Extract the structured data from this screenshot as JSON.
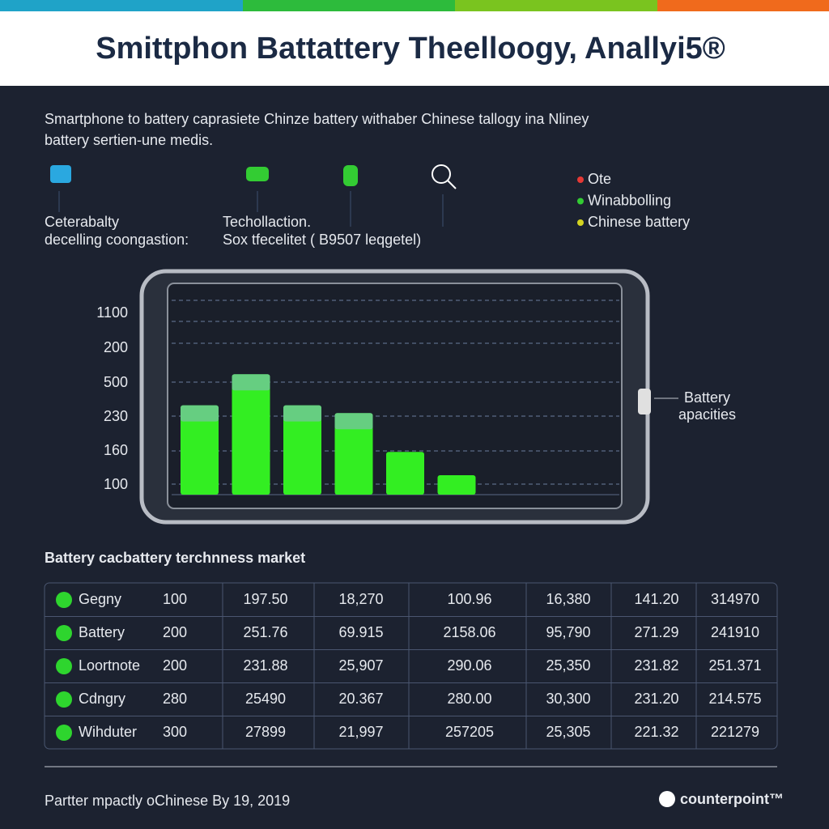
{
  "header": {
    "title": "Smittphon Battattery Theelloogy, Anallyi5®",
    "subtitle_lines": [
      "Smartphone to battery caprasiete Chinze battery withaber Chinese tallogy ina Nliney",
      "battery sertien-une medis."
    ]
  },
  "features": [
    {
      "lines": [
        "Ceterabalty",
        "decelling coongastion:"
      ]
    },
    {
      "lines": [
        "Techollaction.",
        "Sox tfecelitet ( B9507 leqgetel)"
      ]
    }
  ],
  "legend": [
    {
      "name": "Ote",
      "color": "#e53935"
    },
    {
      "name": "Winabbolling",
      "color": "#33cc33"
    },
    {
      "name": "Chinese battery",
      "color": "#d4d420"
    }
  ],
  "chart_data": {
    "type": "bar",
    "y_axis_labels": [
      "1100",
      "200",
      "500",
      "230",
      "160",
      "100"
    ],
    "values": [
      46,
      62,
      46,
      42,
      22,
      10
    ],
    "color": "#33ee22",
    "annotation": [
      "Battery",
      "apacities"
    ]
  },
  "table": {
    "title": "Battery cacbattery terchnness market",
    "rows": [
      [
        "Gegny",
        "100",
        "197.50",
        "18,270",
        "100.96",
        "16,380",
        "141.20",
        "314970"
      ],
      [
        "Battery",
        "200",
        "251.76",
        "69.915",
        "2158.06",
        "95,790",
        "271.29",
        "241910"
      ],
      [
        "Loortnote",
        "200",
        "231.88",
        "25,907",
        "290.06",
        "25,350",
        "231.82",
        "251.371"
      ],
      [
        "Cdngry",
        "280",
        "25490",
        "20.367",
        "280.00",
        "30,300",
        "231.20",
        "214.575"
      ],
      [
        "Wihduter",
        "300",
        "27899",
        "21,997",
        "257205",
        "25,305",
        "221.32",
        "221279"
      ]
    ]
  },
  "footer": {
    "note": "Partter mpactly oChinese By 19, 2019",
    "brand": "counterpoint™"
  }
}
